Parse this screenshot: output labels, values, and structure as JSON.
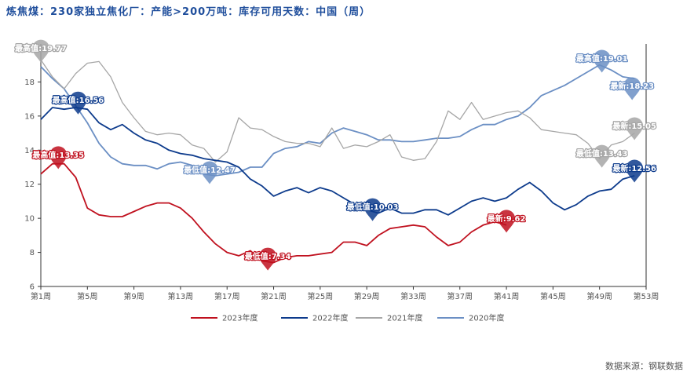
{
  "title": "炼焦煤：230家独立焦化厂：产能>200万吨：库存可用天数：中国（周）",
  "source": "数据来源：钢联数据",
  "colors": {
    "y2023": "#c0111f",
    "y2022": "#0d3b8c",
    "y2021": "#a6a6a6",
    "y2020": "#6b8fc4"
  },
  "chart_data": {
    "type": "line",
    "x_tick_labels": [
      "第1周",
      "第5周",
      "第9周",
      "第13周",
      "第17周",
      "第21周",
      "第25周",
      "第29周",
      "第33周",
      "第37周",
      "第41周",
      "第45周",
      "第49周",
      "第53周"
    ],
    "x_tick_weeks": [
      1,
      5,
      9,
      13,
      17,
      21,
      25,
      29,
      33,
      37,
      41,
      45,
      49,
      53
    ],
    "xlim": [
      1,
      53
    ],
    "ylim": [
      6,
      20
    ],
    "y_ticks": [
      6,
      8,
      10,
      12,
      14,
      16,
      18,
      20
    ],
    "legend_position": "bottom",
    "series": [
      {
        "name": "2023年度",
        "color_key": "y2023",
        "points": [
          [
            1,
            12.6
          ],
          [
            2,
            13.2
          ],
          [
            3,
            13.2
          ],
          [
            4,
            12.4
          ],
          [
            5,
            10.6
          ],
          [
            6,
            10.2
          ],
          [
            7,
            10.1
          ],
          [
            8,
            10.1
          ],
          [
            9,
            10.4
          ],
          [
            10,
            10.7
          ],
          [
            11,
            10.9
          ],
          [
            12,
            10.9
          ],
          [
            13,
            10.6
          ],
          [
            14,
            10.0
          ],
          [
            15,
            9.2
          ],
          [
            16,
            8.5
          ],
          [
            17,
            8.0
          ],
          [
            18,
            7.8
          ],
          [
            19,
            8.1
          ],
          [
            20,
            7.5
          ],
          [
            21,
            7.4
          ],
          [
            22,
            7.7
          ],
          [
            23,
            7.8
          ],
          [
            24,
            7.8
          ],
          [
            25,
            7.9
          ],
          [
            26,
            8.0
          ],
          [
            27,
            8.6
          ],
          [
            28,
            8.6
          ],
          [
            29,
            8.4
          ],
          [
            30,
            9.0
          ],
          [
            31,
            9.4
          ],
          [
            32,
            9.5
          ],
          [
            33,
            9.6
          ],
          [
            34,
            9.5
          ],
          [
            35,
            8.9
          ],
          [
            36,
            8.4
          ],
          [
            37,
            8.6
          ],
          [
            38,
            9.2
          ],
          [
            39,
            9.6
          ],
          [
            40,
            9.8
          ],
          [
            41,
            9.6
          ]
        ]
      },
      {
        "name": "2022年度",
        "color_key": "y2022",
        "points": [
          [
            1,
            15.8
          ],
          [
            2,
            16.5
          ],
          [
            3,
            16.4
          ],
          [
            4,
            16.5
          ],
          [
            5,
            16.4
          ],
          [
            6,
            15.6
          ],
          [
            7,
            15.2
          ],
          [
            8,
            15.5
          ],
          [
            9,
            15.0
          ],
          [
            10,
            14.6
          ],
          [
            11,
            14.4
          ],
          [
            12,
            14.0
          ],
          [
            13,
            13.8
          ],
          [
            14,
            13.7
          ],
          [
            15,
            13.5
          ],
          [
            16,
            13.4
          ],
          [
            17,
            13.3
          ],
          [
            18,
            13.0
          ],
          [
            19,
            12.3
          ],
          [
            20,
            11.9
          ],
          [
            21,
            11.3
          ],
          [
            22,
            11.6
          ],
          [
            23,
            11.8
          ],
          [
            24,
            11.5
          ],
          [
            25,
            11.8
          ],
          [
            26,
            11.6
          ],
          [
            27,
            11.2
          ],
          [
            28,
            10.8
          ],
          [
            29,
            10.5
          ],
          [
            30,
            10.3
          ],
          [
            31,
            10.6
          ],
          [
            32,
            10.3
          ],
          [
            33,
            10.3
          ],
          [
            34,
            10.5
          ],
          [
            35,
            10.5
          ],
          [
            36,
            10.2
          ],
          [
            37,
            10.6
          ],
          [
            38,
            11.0
          ],
          [
            39,
            11.2
          ],
          [
            40,
            11.0
          ],
          [
            41,
            11.2
          ],
          [
            42,
            11.7
          ],
          [
            43,
            12.1
          ],
          [
            44,
            11.6
          ],
          [
            45,
            10.9
          ],
          [
            46,
            10.5
          ],
          [
            47,
            10.8
          ],
          [
            48,
            11.3
          ],
          [
            49,
            11.6
          ],
          [
            50,
            11.7
          ],
          [
            51,
            12.3
          ],
          [
            52,
            12.5
          ]
        ]
      },
      {
        "name": "2021年度",
        "color_key": "y2021",
        "points": [
          [
            1,
            19.3
          ],
          [
            2,
            18.3
          ],
          [
            3,
            17.6
          ],
          [
            4,
            18.5
          ],
          [
            5,
            19.1
          ],
          [
            6,
            19.2
          ],
          [
            7,
            18.3
          ],
          [
            8,
            16.8
          ],
          [
            9,
            15.9
          ],
          [
            10,
            15.1
          ],
          [
            11,
            14.9
          ],
          [
            12,
            15.0
          ],
          [
            13,
            14.9
          ],
          [
            14,
            14.3
          ],
          [
            15,
            14.1
          ],
          [
            16,
            13.3
          ],
          [
            17,
            13.9
          ],
          [
            18,
            15.9
          ],
          [
            19,
            15.3
          ],
          [
            20,
            15.2
          ],
          [
            21,
            14.8
          ],
          [
            22,
            14.5
          ],
          [
            23,
            14.4
          ],
          [
            24,
            14.4
          ],
          [
            25,
            14.2
          ],
          [
            26,
            15.3
          ],
          [
            27,
            14.1
          ],
          [
            28,
            14.3
          ],
          [
            29,
            14.2
          ],
          [
            30,
            14.5
          ],
          [
            31,
            14.9
          ],
          [
            32,
            13.6
          ],
          [
            33,
            13.4
          ],
          [
            34,
            13.5
          ],
          [
            35,
            14.5
          ],
          [
            36,
            16.3
          ],
          [
            37,
            15.8
          ],
          [
            38,
            16.8
          ],
          [
            39,
            15.8
          ],
          [
            40,
            16.0
          ],
          [
            41,
            16.2
          ],
          [
            42,
            16.3
          ],
          [
            43,
            15.9
          ],
          [
            44,
            15.2
          ],
          [
            45,
            15.1
          ],
          [
            46,
            15.0
          ],
          [
            47,
            14.9
          ],
          [
            48,
            14.4
          ],
          [
            49,
            13.5
          ],
          [
            50,
            14.3
          ],
          [
            51,
            14.5
          ],
          [
            52,
            15.0
          ]
        ]
      },
      {
        "name": "2020年度",
        "color_key": "y2020",
        "points": [
          [
            1,
            18.9
          ],
          [
            2,
            18.2
          ],
          [
            3,
            17.6
          ],
          [
            4,
            16.6
          ],
          [
            5,
            15.6
          ],
          [
            6,
            14.4
          ],
          [
            7,
            13.6
          ],
          [
            8,
            13.2
          ],
          [
            9,
            13.1
          ],
          [
            10,
            13.1
          ],
          [
            11,
            12.9
          ],
          [
            12,
            13.2
          ],
          [
            13,
            13.3
          ],
          [
            14,
            13.1
          ],
          [
            15,
            12.6
          ],
          [
            16,
            12.5
          ],
          [
            17,
            12.6
          ],
          [
            18,
            12.7
          ],
          [
            19,
            13.0
          ],
          [
            20,
            13.0
          ],
          [
            21,
            13.8
          ],
          [
            22,
            14.1
          ],
          [
            23,
            14.2
          ],
          [
            24,
            14.5
          ],
          [
            25,
            14.4
          ],
          [
            26,
            15.0
          ],
          [
            27,
            15.3
          ],
          [
            28,
            15.1
          ],
          [
            29,
            14.9
          ],
          [
            30,
            14.6
          ],
          [
            31,
            14.6
          ],
          [
            32,
            14.5
          ],
          [
            33,
            14.5
          ],
          [
            34,
            14.6
          ],
          [
            35,
            14.7
          ],
          [
            36,
            14.7
          ],
          [
            37,
            14.8
          ],
          [
            38,
            15.2
          ],
          [
            39,
            15.5
          ],
          [
            40,
            15.5
          ],
          [
            41,
            15.8
          ],
          [
            42,
            16.0
          ],
          [
            43,
            16.5
          ],
          [
            44,
            17.2
          ],
          [
            45,
            17.5
          ],
          [
            46,
            17.8
          ],
          [
            47,
            18.2
          ],
          [
            48,
            18.6
          ],
          [
            49,
            19.0
          ],
          [
            50,
            18.7
          ],
          [
            51,
            18.3
          ],
          [
            52,
            18.2
          ]
        ]
      }
    ],
    "annotations": [
      {
        "label": "最高值:13.35",
        "week": 2.5,
        "value": 13.35,
        "color_key": "y2023"
      },
      {
        "label": "最低值:7.34",
        "week": 20.5,
        "value": 7.4,
        "color_key": "y2023"
      },
      {
        "label": "最新:9.62",
        "week": 41,
        "value": 9.62,
        "color_key": "y2023"
      },
      {
        "label": "最高值:16.56",
        "week": 4.2,
        "value": 16.56,
        "color_key": "y2022"
      },
      {
        "label": "最低值:10.03",
        "week": 29.5,
        "value": 10.3,
        "color_key": "y2022"
      },
      {
        "label": "最新:12.56",
        "week": 52,
        "value": 12.56,
        "color_key": "y2022"
      },
      {
        "label": "最高值:19.77",
        "week": 1,
        "value": 19.6,
        "color_key": "y2021"
      },
      {
        "label": "最低值:13.43",
        "week": 49.2,
        "value": 13.43,
        "color_key": "y2021"
      },
      {
        "label": "最新:15.05",
        "week": 52,
        "value": 15.05,
        "color_key": "y2021"
      },
      {
        "label": "最低值:12.47",
        "week": 15.5,
        "value": 12.47,
        "color_key": "y2020"
      },
      {
        "label": "最高值:19.01",
        "week": 49.2,
        "value": 19.01,
        "color_key": "y2020"
      },
      {
        "label": "最新:18.23",
        "week": 51.8,
        "value": 17.4,
        "color_key": "y2020"
      }
    ]
  }
}
